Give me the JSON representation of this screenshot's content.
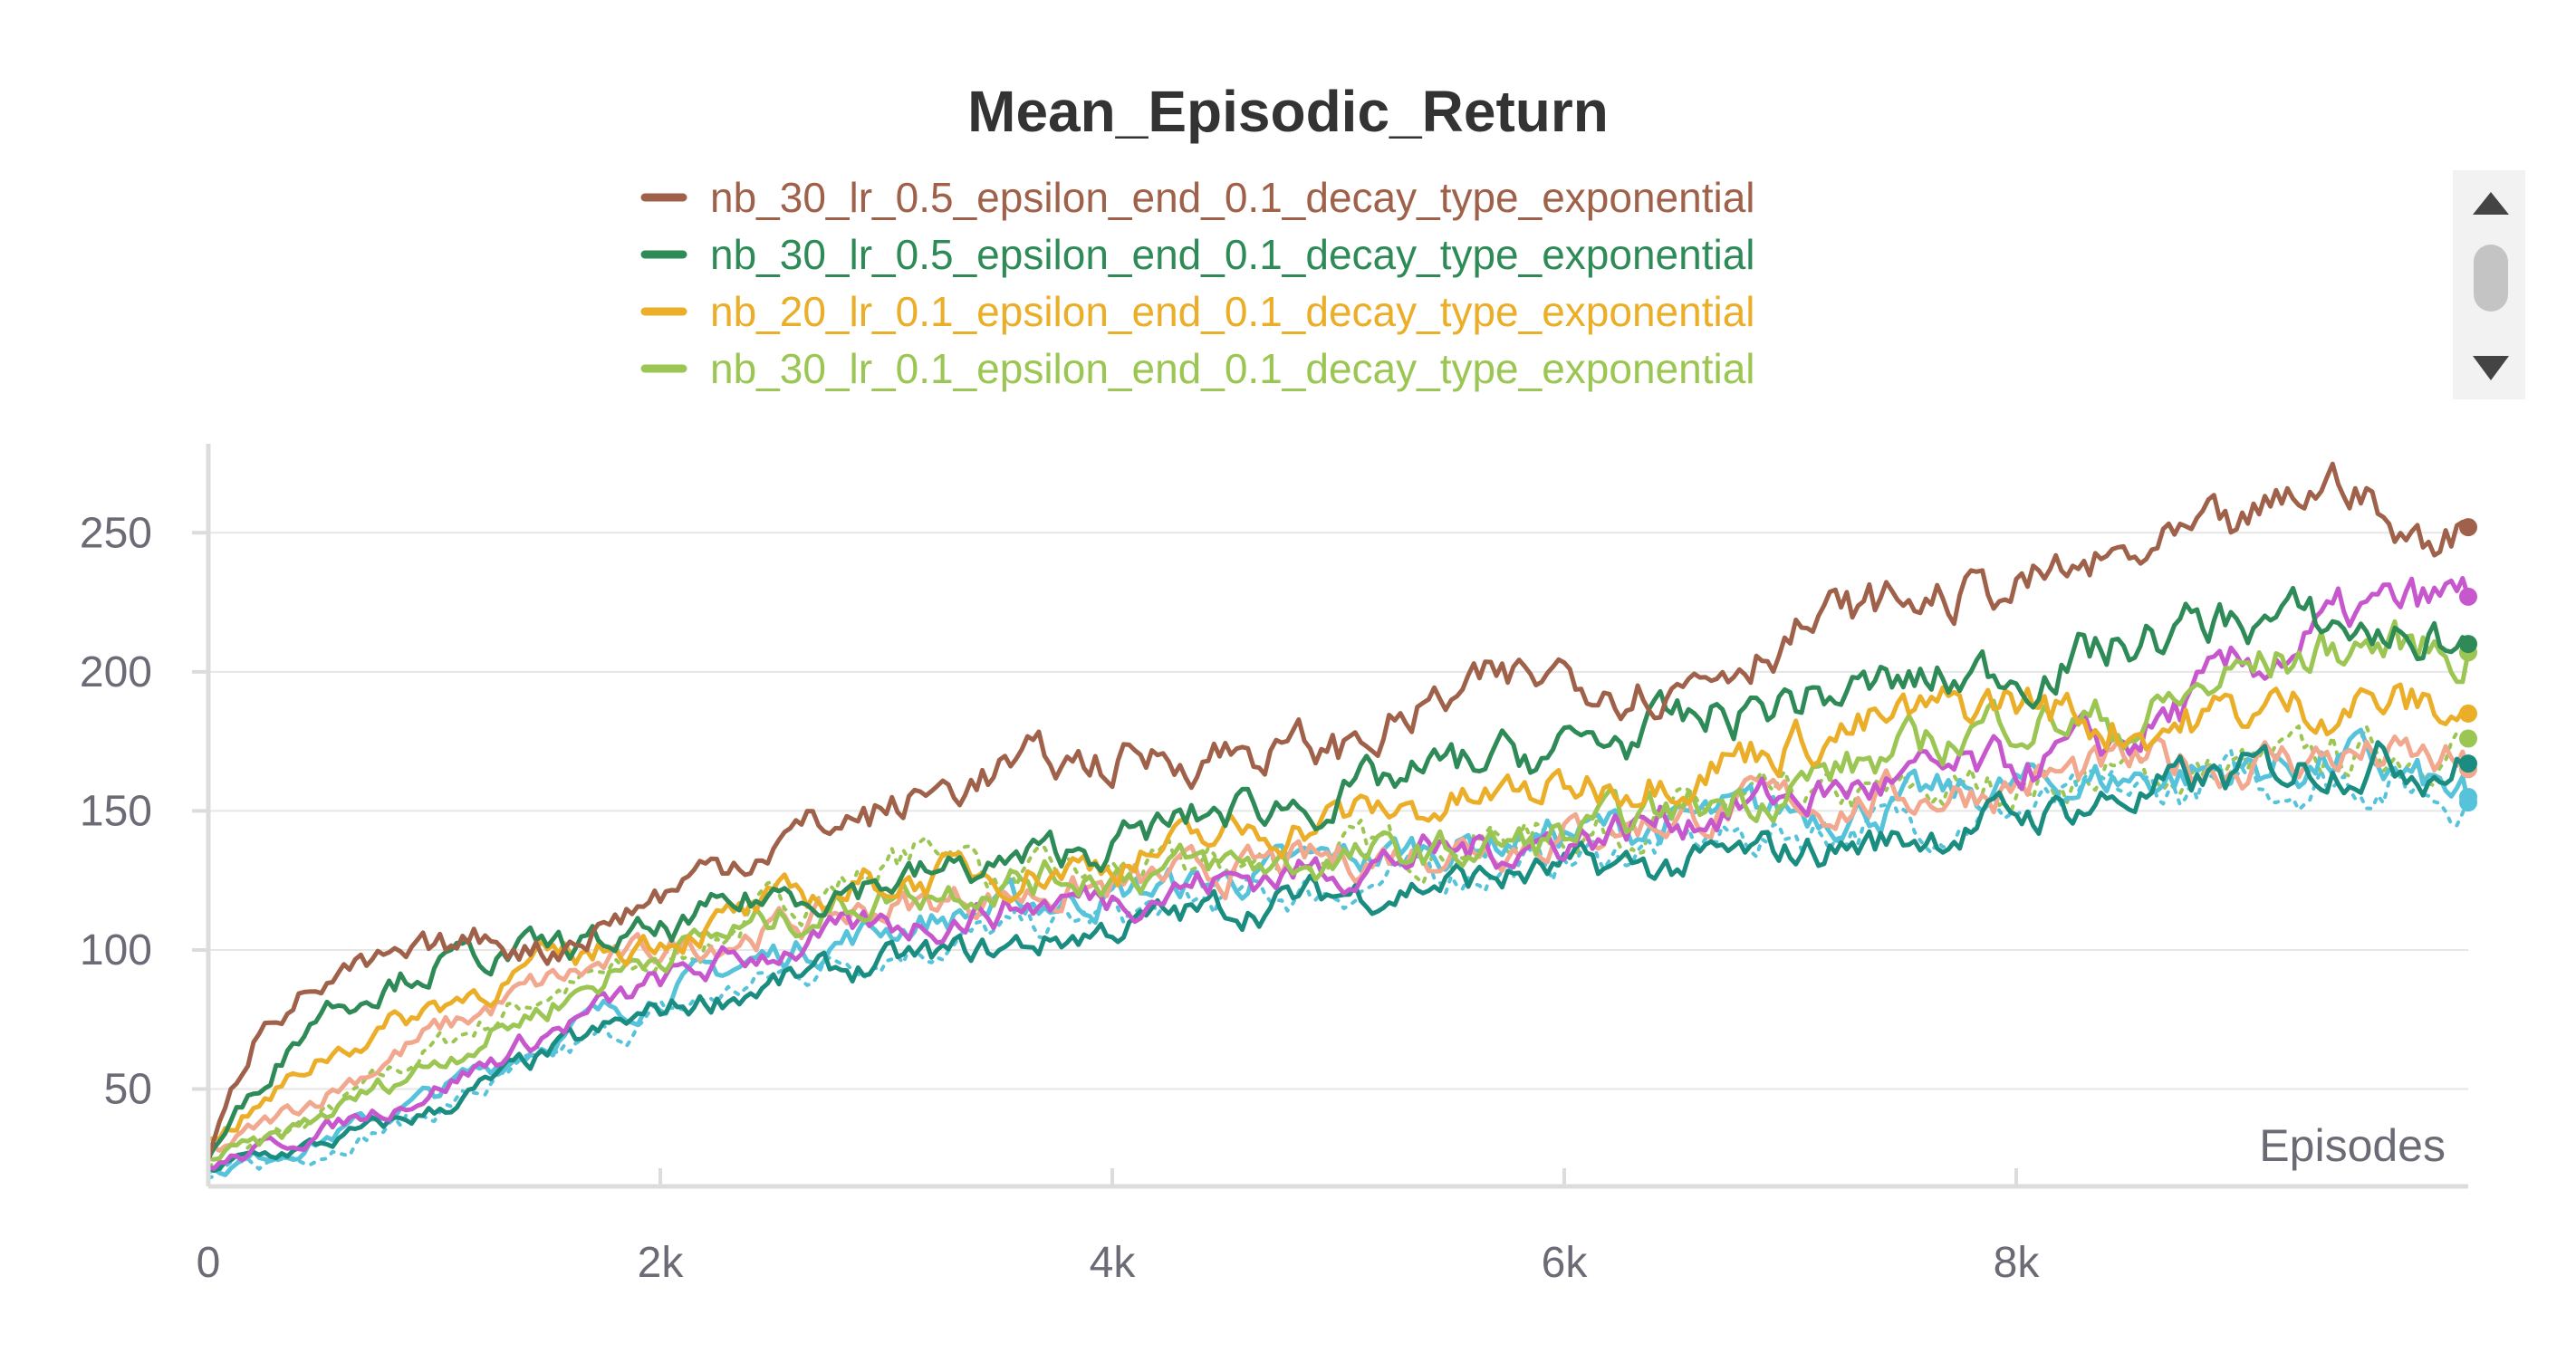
{
  "chart_data": {
    "type": "line",
    "title": "Mean_Episodic_Return",
    "xlabel": "Episodes",
    "ylabel": "",
    "xlim": [
      0,
      10000
    ],
    "ylim": [
      15,
      282
    ],
    "xticks": [
      {
        "value": 0,
        "label": "0"
      },
      {
        "value": 2000,
        "label": "2k"
      },
      {
        "value": 4000,
        "label": "4k"
      },
      {
        "value": 6000,
        "label": "6k"
      },
      {
        "value": 8000,
        "label": "8k"
      }
    ],
    "yticks": [
      {
        "value": 50,
        "label": "50"
      },
      {
        "value": 100,
        "label": "100"
      },
      {
        "value": 150,
        "label": "150"
      },
      {
        "value": 200,
        "label": "200"
      },
      {
        "value": 250,
        "label": "250"
      }
    ],
    "grid": true,
    "legend": {
      "placement": "top",
      "visible_entries": [
        0,
        1,
        2,
        3
      ],
      "scroll_controls": true
    },
    "series": [
      {
        "name": "nb_30_lr_0.5_epsilon_end_0.1_decay_type_exponential",
        "color": "#a0614a",
        "dash": "solid",
        "x": [
          0,
          250,
          500,
          1000,
          1250,
          1500,
          2000,
          2500,
          3000,
          3500,
          4000,
          4500,
          5000,
          5500,
          6000,
          6500,
          7000,
          7500,
          8000,
          8500,
          9000,
          9300,
          9500,
          9700,
          10000
        ],
        "y": [
          25,
          78,
          88,
          98,
          105,
          100,
          120,
          140,
          150,
          165,
          168,
          172,
          172,
          190,
          200,
          195,
          215,
          225,
          230,
          240,
          250,
          265,
          270,
          245,
          252
        ]
      },
      {
        "name": "nb_30_lr_0.5_epsilon_end_0.1_decay_type_exponential",
        "color": "#2e8b57",
        "dash": "solid",
        "x": [
          0,
          250,
          500,
          1000,
          1500,
          2000,
          2500,
          3000,
          3500,
          4000,
          4500,
          5000,
          5500,
          6000,
          6500,
          7000,
          7500,
          8000,
          8500,
          9000,
          9500,
          10000
        ],
        "y": [
          25,
          55,
          80,
          95,
          100,
          105,
          120,
          125,
          130,
          138,
          150,
          155,
          165,
          172,
          180,
          190,
          195,
          200,
          210,
          220,
          215,
          210
        ]
      },
      {
        "name": "nb_20_lr_0.1_epsilon_end_0.1_decay_type_exponential",
        "color": "#ebae28",
        "dash": "solid",
        "x": [
          0,
          250,
          500,
          1000,
          1500,
          2000,
          2500,
          3000,
          3500,
          4000,
          4500,
          5000,
          5500,
          6000,
          6500,
          7000,
          7500,
          8000,
          8500,
          9000,
          9500,
          10000
        ],
        "y": [
          32,
          45,
          62,
          80,
          95,
          105,
          115,
          125,
          128,
          132,
          140,
          148,
          152,
          158,
          165,
          175,
          182,
          190,
          180,
          185,
          190,
          185
        ]
      },
      {
        "name": "nb_30_lr_0.1_epsilon_end_0.1_decay_type_exponential",
        "color": "#9bc653",
        "dash": "solid",
        "x": [
          0,
          250,
          500,
          1000,
          1500,
          2000,
          2500,
          3000,
          3500,
          4000,
          4500,
          5000,
          5500,
          6000,
          6500,
          7000,
          7500,
          8000,
          8500,
          9000,
          9500,
          10000
        ],
        "y": [
          25,
          30,
          40,
          60,
          80,
          100,
          110,
          120,
          125,
          128,
          130,
          132,
          135,
          140,
          150,
          160,
          170,
          185,
          180,
          200,
          210,
          207
        ]
      },
      {
        "name": "",
        "color": "#c757cc",
        "dash": "solid",
        "x": [
          0,
          500,
          1000,
          1500,
          2000,
          2500,
          3000,
          3500,
          4000,
          4500,
          5000,
          5500,
          6000,
          6500,
          7000,
          7500,
          8000,
          8500,
          9000,
          9500,
          10000
        ],
        "y": [
          22,
          35,
          50,
          70,
          88,
          100,
          108,
          115,
          120,
          125,
          130,
          135,
          140,
          148,
          155,
          160,
          165,
          175,
          200,
          220,
          227
        ]
      },
      {
        "name": "",
        "color": "#1a8c80",
        "dash": "solid",
        "x": [
          0,
          500,
          1000,
          1500,
          2000,
          2500,
          3000,
          3500,
          4000,
          4500,
          5000,
          5500,
          6000,
          6500,
          7000,
          7500,
          8000,
          8500,
          9000,
          9500,
          10000
        ],
        "y": [
          22,
          30,
          42,
          62,
          78,
          88,
          95,
          100,
          108,
          115,
          120,
          125,
          128,
          130,
          135,
          140,
          148,
          155,
          162,
          170,
          167
        ]
      },
      {
        "name": "",
        "color": "#f2a88e",
        "dash": "solid",
        "x": [
          0,
          500,
          1000,
          1500,
          2000,
          2500,
          3000,
          3500,
          4000,
          4500,
          5000,
          5500,
          6000,
          6500,
          7000,
          7500,
          8000,
          8500,
          9000,
          9500,
          10000
        ],
        "y": [
          26,
          48,
          70,
          88,
          100,
          108,
          115,
          120,
          122,
          128,
          132,
          138,
          142,
          148,
          152,
          155,
          160,
          165,
          168,
          170,
          165
        ]
      },
      {
        "name": "",
        "color": "#56c3db",
        "dash": "solid",
        "x": [
          0,
          500,
          1000,
          1500,
          2000,
          2500,
          3000,
          3500,
          4000,
          4500,
          5000,
          5500,
          6000,
          6500,
          7000,
          7500,
          8000,
          8500,
          9000,
          9500,
          10000
        ],
        "y": [
          20,
          32,
          48,
          68,
          85,
          98,
          108,
          115,
          120,
          125,
          132,
          138,
          142,
          145,
          150,
          152,
          158,
          162,
          165,
          168,
          153
        ]
      },
      {
        "name": "",
        "color": "#56c3db",
        "dash": "dotted",
        "x": [
          0,
          500,
          1000,
          1500,
          2000,
          2500,
          3000,
          3500,
          4000,
          4500,
          5000,
          5500,
          6000,
          6500,
          7000,
          7500,
          8000,
          8500,
          9000,
          9500,
          10000
        ],
        "y": [
          18,
          28,
          42,
          60,
          76,
          90,
          100,
          106,
          112,
          118,
          122,
          128,
          132,
          138,
          142,
          146,
          150,
          155,
          160,
          162,
          155
        ]
      },
      {
        "name": "",
        "color": "#9bc653",
        "dash": "dotted",
        "x": [
          0,
          500,
          1000,
          1500,
          2000,
          2500,
          3000,
          3300,
          3500,
          4000,
          4500,
          5000,
          5500,
          6000,
          6500,
          7000,
          7500,
          8000,
          8500,
          9000,
          9500,
          10000
        ],
        "y": [
          22,
          40,
          65,
          85,
          95,
          115,
          130,
          140,
          125,
          128,
          130,
          135,
          138,
          142,
          148,
          152,
          155,
          160,
          162,
          165,
          170,
          176
        ]
      }
    ]
  }
}
